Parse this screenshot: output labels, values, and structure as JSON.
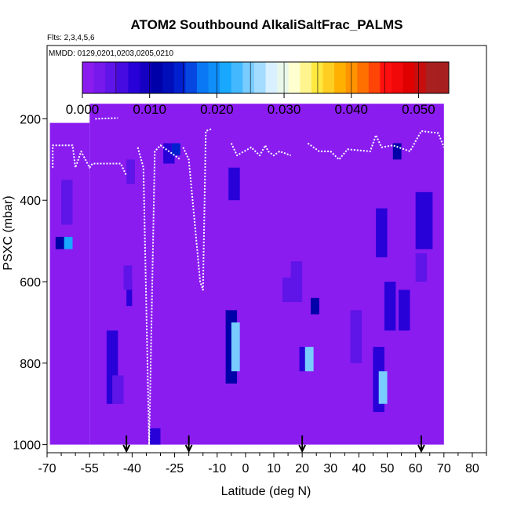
{
  "chart_data": {
    "type": "heatmap",
    "title": "ATOM2 Southbound AlkaliSaltFrac_PALMS",
    "flights_note": "Flts: 2,3,4,5,6",
    "dates_note": "MMDD: 0129,0201,0203,0205,0210",
    "xlabel": "Latitude (deg N)",
    "ylabel": "PSXC (mbar)",
    "xlim": [
      -70,
      85
    ],
    "ylim": [
      1020,
      20
    ],
    "xticks": [
      -70,
      -55,
      -40,
      -25,
      -10,
      0,
      10,
      20,
      30,
      40,
      50,
      60,
      70,
      80
    ],
    "xtick_labels": [
      "-70",
      "-55",
      "-40",
      "-25",
      "-10",
      "0",
      "10",
      "20",
      "30",
      "40",
      "50",
      "60",
      "70",
      "80"
    ],
    "yticks": [
      200,
      400,
      600,
      800,
      1000
    ],
    "ytick_labels": [
      "200",
      "400",
      "600",
      "800",
      "1000"
    ],
    "colorbar": {
      "min": 0.0,
      "max": 0.0545,
      "ticks": [
        0.0,
        0.01,
        0.02,
        0.03,
        0.04,
        0.05
      ],
      "tick_labels": [
        "0.000",
        "0.010",
        "0.020",
        "0.030",
        "0.040",
        "0.050"
      ],
      "colors": [
        "#8a1cf0",
        "#5f14e8",
        "#2800d8",
        "#0000a8",
        "#0020d0",
        "#0a78f5",
        "#18a8ff",
        "#78ccff",
        "#d8f0ff",
        "#ffffd0",
        "#ffe840",
        "#ffb000",
        "#ff7000",
        "#ff1010",
        "#e00000",
        "#a82020"
      ]
    },
    "background_value": 0.0,
    "coverage_regions": [
      {
        "lat": [
          -69,
          -55
        ],
        "p": [
          210,
          1000
        ]
      },
      {
        "lat": [
          -55,
          70
        ],
        "p": [
          163,
          1000
        ]
      }
    ],
    "cells": [
      {
        "lat": [
          -65,
          -61
        ],
        "p": [
          350,
          460
        ],
        "value": 0.006
      },
      {
        "lat": [
          -67,
          -62
        ],
        "p": [
          490,
          520
        ],
        "value": 0.012
      },
      {
        "lat": [
          -64,
          -61
        ],
        "p": [
          490,
          520
        ],
        "value": 0.022
      },
      {
        "lat": [
          -49,
          -45
        ],
        "p": [
          720,
          900
        ],
        "value": 0.008
      },
      {
        "lat": [
          -47,
          -43
        ],
        "p": [
          830,
          900
        ],
        "value": 0.004
      },
      {
        "lat": [
          -42,
          -39
        ],
        "p": [
          300,
          360
        ],
        "value": 0.006
      },
      {
        "lat": [
          -42,
          -40
        ],
        "p": [
          600,
          660
        ],
        "value": 0.01
      },
      {
        "lat": [
          -43,
          -40
        ],
        "p": [
          560,
          620
        ],
        "value": 0.005
      },
      {
        "lat": [
          -34,
          -30
        ],
        "p": [
          960,
          1000
        ],
        "value": 0.008
      },
      {
        "lat": [
          -29,
          -25
        ],
        "p": [
          260,
          310
        ],
        "value": 0.009
      },
      {
        "lat": [
          -26,
          -23
        ],
        "p": [
          260,
          290
        ],
        "value": 0.016
      },
      {
        "lat": [
          -7,
          -3
        ],
        "p": [
          670,
          850
        ],
        "value": 0.012
      },
      {
        "lat": [
          -5,
          -2
        ],
        "p": [
          700,
          820
        ],
        "value": 0.024
      },
      {
        "lat": [
          -6,
          -2
        ],
        "p": [
          320,
          400
        ],
        "value": 0.007
      },
      {
        "lat": [
          13,
          18
        ],
        "p": [
          590,
          650
        ],
        "value": 0.006
      },
      {
        "lat": [
          16,
          20
        ],
        "p": [
          550,
          650
        ],
        "value": 0.004
      },
      {
        "lat": [
          19,
          22
        ],
        "p": [
          760,
          820
        ],
        "value": 0.007
      },
      {
        "lat": [
          21,
          24
        ],
        "p": [
          760,
          820
        ],
        "value": 0.024
      },
      {
        "lat": [
          23,
          26
        ],
        "p": [
          640,
          680
        ],
        "value": 0.011
      },
      {
        "lat": [
          37,
          41
        ],
        "p": [
          670,
          800
        ],
        "value": 0.006
      },
      {
        "lat": [
          40,
          43
        ],
        "p": [
          300,
          360
        ],
        "value": 0.003
      },
      {
        "lat": [
          45,
          49
        ],
        "p": [
          760,
          920
        ],
        "value": 0.007
      },
      {
        "lat": [
          47,
          50
        ],
        "p": [
          820,
          900
        ],
        "value": 0.026
      },
      {
        "lat": [
          46,
          50
        ],
        "p": [
          420,
          540
        ],
        "value": 0.009
      },
      {
        "lat": [
          49,
          53
        ],
        "p": [
          600,
          720
        ],
        "value": 0.008
      },
      {
        "lat": [
          52,
          55
        ],
        "p": [
          260,
          300
        ],
        "value": 0.012
      },
      {
        "lat": [
          54,
          58
        ],
        "p": [
          620,
          720
        ],
        "value": 0.007
      },
      {
        "lat": [
          60,
          66
        ],
        "p": [
          380,
          520
        ],
        "value": 0.008
      },
      {
        "lat": [
          60,
          64
        ],
        "p": [
          530,
          600
        ],
        "value": 0.004
      }
    ],
    "flight_profiles": [
      {
        "segments": [
          [
            -68,
            320
          ],
          [
            -68,
            265
          ],
          [
            -61,
            265
          ],
          [
            -60,
            320
          ],
          [
            -58,
            280
          ],
          [
            -55,
            320
          ],
          [
            -54,
            310
          ],
          [
            -44,
            310
          ],
          [
            -42,
            340
          ]
        ]
      },
      {
        "segments": [
          [
            -53,
            200
          ],
          [
            -45,
            198
          ]
        ]
      },
      {
        "segments": [
          [
            -38,
            270
          ],
          [
            -36,
            320
          ],
          [
            -34,
            1000
          ],
          [
            -32,
            280
          ],
          [
            -30,
            265
          ],
          [
            -27,
            280
          ],
          [
            -23,
            300
          ]
        ]
      },
      {
        "segments": [
          [
            -22,
            270
          ],
          [
            -20,
            300
          ],
          [
            -18,
            450
          ],
          [
            -16,
            600
          ],
          [
            -15,
            620
          ],
          [
            -14,
            230
          ],
          [
            -12,
            225
          ]
        ]
      },
      {
        "segments": [
          [
            -5,
            260
          ],
          [
            -3,
            290
          ],
          [
            2,
            270
          ],
          [
            5,
            290
          ],
          [
            7,
            265
          ],
          [
            8,
            280
          ],
          [
            10,
            290
          ],
          [
            12,
            280
          ],
          [
            14,
            285
          ],
          [
            16,
            290
          ]
        ]
      },
      {
        "segments": [
          [
            22,
            260
          ],
          [
            26,
            280
          ],
          [
            30,
            280
          ],
          [
            33,
            300
          ],
          [
            36,
            275
          ],
          [
            44,
            280
          ],
          [
            46,
            240
          ],
          [
            48,
            270
          ],
          [
            52,
            265
          ],
          [
            58,
            280
          ],
          [
            60,
            255
          ],
          [
            62,
            230
          ],
          [
            68,
            235
          ],
          [
            70,
            270
          ]
        ]
      }
    ],
    "markers_latitude": [
      -42,
      -20,
      20,
      62
    ],
    "marker_labels": []
  }
}
